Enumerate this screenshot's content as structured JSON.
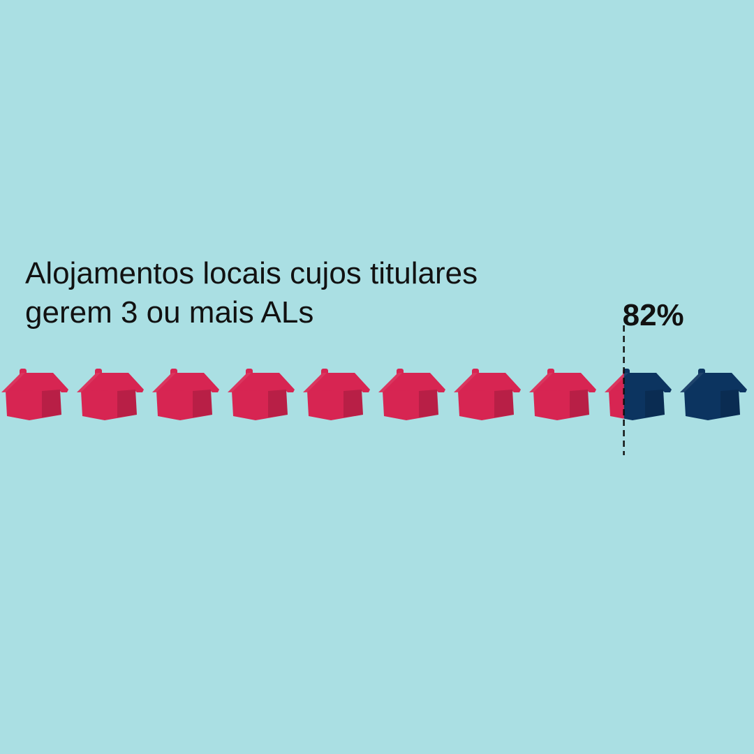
{
  "title": {
    "line1": "Alojamentos locais cujos titulares",
    "line2": "gerem 3 ou mais ALs"
  },
  "chart_data": {
    "type": "pictogram",
    "icon": "house-icon",
    "icon_count": 10,
    "value_percent": 82,
    "value_label": "82%",
    "colors": {
      "highlight": "#d72552",
      "remainder": "#0c3460",
      "background": "#aadfe3",
      "marker": "#111111"
    }
  }
}
